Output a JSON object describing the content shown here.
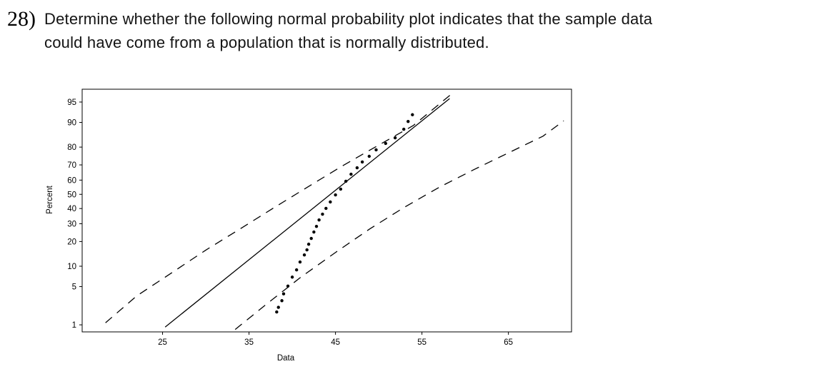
{
  "question": {
    "number": "28)",
    "line1": "Determine whether the following normal probability plot indicates that the sample data",
    "line2": "could have come from a population that is normally distributed."
  },
  "chart_data": {
    "type": "scatter",
    "title": "",
    "xlabel": "Data",
    "ylabel": "Percent",
    "y_scale": "normal-probability-percent",
    "grid": false,
    "legend": false,
    "x_ticks": [
      25,
      35,
      45,
      55,
      65
    ],
    "y_ticks": [
      1,
      5,
      10,
      20,
      30,
      40,
      50,
      60,
      70,
      80,
      90,
      95
    ],
    "xlim": [
      15.7,
      72.3
    ],
    "ylim_percent": [
      0.71,
      96.95
    ],
    "points": [
      [
        38.2,
        1.8
      ],
      [
        38.4,
        2.2
      ],
      [
        38.8,
        2.9
      ],
      [
        39.0,
        3.8
      ],
      [
        39.5,
        5.1
      ],
      [
        40.0,
        7.0
      ],
      [
        40.5,
        8.9
      ],
      [
        40.9,
        11.4
      ],
      [
        41.4,
        14.0
      ],
      [
        41.7,
        16.1
      ],
      [
        41.9,
        18.7
      ],
      [
        42.2,
        21.6
      ],
      [
        42.5,
        25.1
      ],
      [
        42.8,
        28.4
      ],
      [
        43.1,
        32.4
      ],
      [
        43.5,
        36.2
      ],
      [
        43.9,
        40.1
      ],
      [
        44.4,
        44.6
      ],
      [
        45.0,
        49.6
      ],
      [
        45.6,
        53.7
      ],
      [
        46.2,
        59.2
      ],
      [
        46.8,
        64.0
      ],
      [
        47.5,
        68.2
      ],
      [
        48.1,
        71.8
      ],
      [
        48.9,
        75.1
      ],
      [
        49.7,
        78.6
      ],
      [
        50.8,
        81.8
      ],
      [
        51.9,
        84.3
      ],
      [
        52.9,
        87.7
      ],
      [
        53.4,
        90.3
      ],
      [
        53.9,
        92.2
      ]
    ],
    "fit_line": {
      "x": [
        25.3,
        58.2
      ],
      "percent": [
        0.9,
        95.6
      ]
    },
    "upper_band": {
      "x": [
        18.4,
        22,
        26,
        30,
        34,
        38,
        42,
        46,
        50,
        54,
        58.6
      ],
      "percent": [
        1.1,
        3.5,
        8,
        16,
        27,
        41,
        56,
        70,
        81,
        89,
        96.5
      ]
    },
    "lower_band": {
      "x": [
        33.4,
        37,
        41,
        45,
        49,
        53,
        57,
        61,
        65,
        69,
        71.4
      ],
      "percent": [
        0.8,
        2.5,
        7,
        15,
        27,
        41,
        55,
        67,
        77,
        85,
        90.5
      ]
    },
    "colors": {
      "points": "#000000",
      "line": "#000000",
      "band": "#000000",
      "frame": "#000000",
      "background": "#ffffff"
    }
  }
}
